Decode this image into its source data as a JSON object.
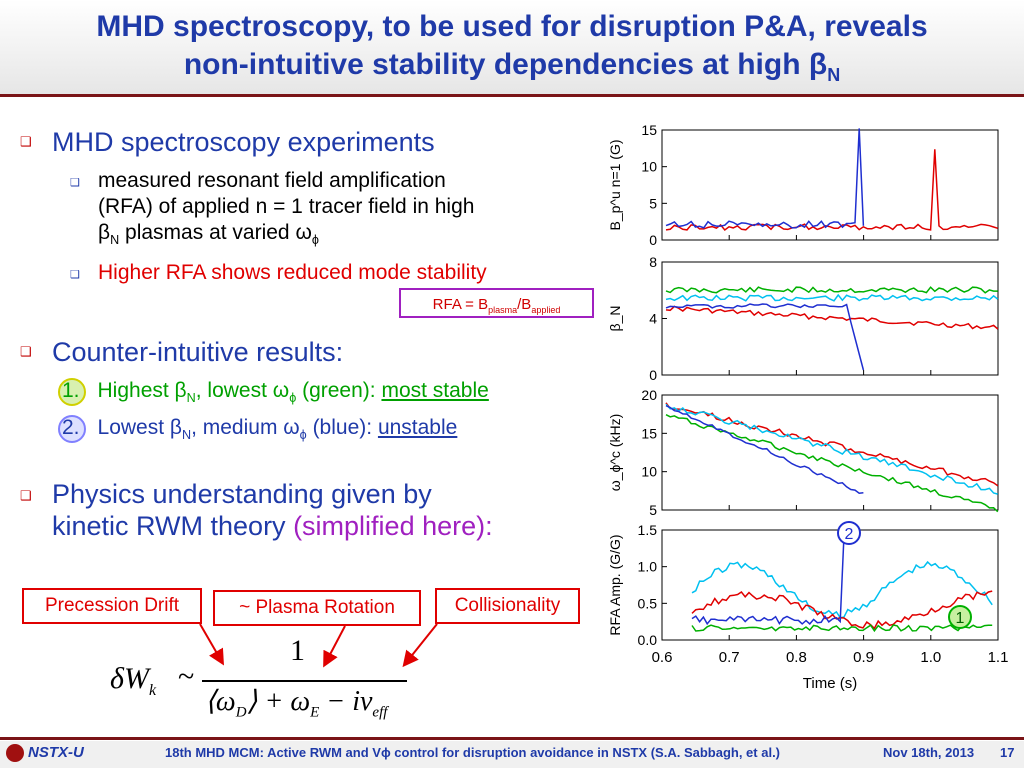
{
  "title": {
    "line1": "MHD spectroscopy, to be used for disruption P&A, reveals",
    "line2": "non-intuitive stability dependencies at high β",
    "line2_sub": "N"
  },
  "bullets": {
    "b1": "MHD spectroscopy experiments",
    "b1_sub1_line1": "measured resonant field amplification",
    "b1_sub1_line2": "(RFA) of applied n = 1 tracer field in high",
    "b1_sub1_line3_pre": "β",
    "b1_sub1_line3_sub": "N",
    "b1_sub1_line3_mid": " plasmas at varied ω",
    "b1_sub1_line3_sub2": "ϕ",
    "b1_sub2": "Higher RFA shows reduced mode stability",
    "rfa_box": "RFA = B",
    "rfa_sub1": "plasma",
    "rfa_slash": "/B",
    "rfa_sub2": "applied",
    "b2": "Counter-intuitive results:",
    "r1_num": "1.",
    "r1_a": "Highest β",
    "r1_sub": "N",
    "r1_b": ", lowest ω",
    "r1_sub2": "ϕ",
    "r1_c": " (green): ",
    "r1_d": "most stable",
    "r2_num": "2.",
    "r2_a": "Lowest β",
    "r2_sub": "N",
    "r2_b": ", medium ω",
    "r2_sub2": "ϕ",
    "r2_c": " (blue): ",
    "r2_d": "unstable",
    "b3_line1": "Physics understanding given by",
    "b3_line2a": "kinetic RWM theory ",
    "b3_line2b": "(simplified here):"
  },
  "labels": {
    "precession": "Precession Drift",
    "rotation": "~ Plasma Rotation",
    "collisionality": "Collisionality"
  },
  "equation": {
    "lhs": "δW",
    "lhs_sub": "k",
    "sim": "~",
    "numerator": "1",
    "denominator": "⟨ω",
    "d_sub": "D",
    "d_mid": "⟩ + ω",
    "e_sub": "E",
    "d_end": " − iν",
    "eff_sub": "eff"
  },
  "chart_data": {
    "type": "line",
    "xlabel": "Time (s)",
    "x_ticks": [
      "0.6",
      "0.7",
      "0.8",
      "0.9",
      "1.0",
      "1.1"
    ],
    "xlim": [
      0.6,
      1.1
    ],
    "panels": [
      {
        "ylabel": "B_p^u n=1 (G)",
        "y_ticks": [
          "0",
          "5",
          "10",
          "15"
        ],
        "ylim": [
          0,
          15
        ]
      },
      {
        "ylabel": "β_N",
        "y_ticks": [
          "0",
          "4",
          "8"
        ],
        "ylim": [
          0,
          8
        ]
      },
      {
        "ylabel": "ω_ϕ^c (kHz)",
        "y_ticks": [
          "5",
          "10",
          "15",
          "20"
        ],
        "ylim": [
          5,
          20
        ]
      },
      {
        "ylabel": "RFA Amp. (G/G)",
        "y_ticks": [
          "0.0",
          "0.5",
          "1.0",
          "1.5"
        ],
        "ylim": [
          0,
          1.5
        ]
      }
    ],
    "series": [
      {
        "color": "#e00000"
      },
      {
        "color": "#1f2fd0"
      },
      {
        "color": "#00c0f0"
      },
      {
        "color": "#00b000"
      }
    ],
    "annotations": [
      "2",
      "1"
    ]
  },
  "footer": {
    "logo": "NSTX-U",
    "text": "18th MHD MCM: Active RWM and Vϕ control for disruption avoidance in NSTX (S.A. Sabbagh, et al.)",
    "date": "Nov 18th, 2013",
    "page": "17"
  },
  "colors": {
    "title": "#1f3aa8",
    "rule": "#7a1417",
    "highlight": "#e00000",
    "accent": "#a020c0"
  }
}
